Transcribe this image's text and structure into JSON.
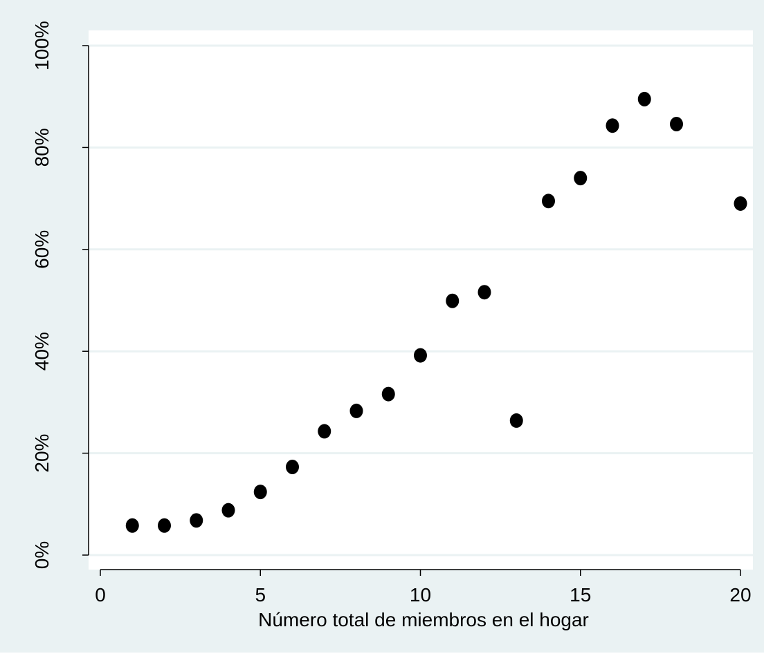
{
  "chart_data": {
    "type": "scatter",
    "title": "",
    "xlabel": "Número total de miembros en el hogar",
    "ylabel": "",
    "xlim": [
      0,
      20
    ],
    "ylim": [
      0,
      100
    ],
    "x_ticks": [
      0,
      5,
      10,
      15,
      20
    ],
    "x_tick_labels": [
      "0",
      "5",
      "10",
      "15",
      "20"
    ],
    "y_ticks": [
      0,
      20,
      40,
      60,
      80,
      100
    ],
    "y_tick_labels": [
      "0%",
      "20%",
      "40%",
      "60%",
      "80%",
      "100%"
    ],
    "grid": "horizontal",
    "series": [
      {
        "points": [
          {
            "x": 1,
            "y": 5.8
          },
          {
            "x": 2,
            "y": 5.8
          },
          {
            "x": 3,
            "y": 6.8
          },
          {
            "x": 4,
            "y": 8.8
          },
          {
            "x": 5,
            "y": 12.4
          },
          {
            "x": 6,
            "y": 17.3
          },
          {
            "x": 7,
            "y": 24.3
          },
          {
            "x": 8,
            "y": 28.3
          },
          {
            "x": 9,
            "y": 31.6
          },
          {
            "x": 10,
            "y": 39.2
          },
          {
            "x": 11,
            "y": 49.9
          },
          {
            "x": 12,
            "y": 51.6
          },
          {
            "x": 13,
            "y": 26.4
          },
          {
            "x": 14,
            "y": 69.5
          },
          {
            "x": 15,
            "y": 74.0
          },
          {
            "x": 16,
            "y": 84.3
          },
          {
            "x": 17,
            "y": 89.5
          },
          {
            "x": 18,
            "y": 84.6
          },
          {
            "x": 20,
            "y": 69.0
          }
        ]
      }
    ]
  },
  "colors": {
    "outer_background": "#eaf2f3",
    "plot_background": "#ffffff",
    "gridline": "#eaf2f3",
    "marker": "#000000"
  }
}
